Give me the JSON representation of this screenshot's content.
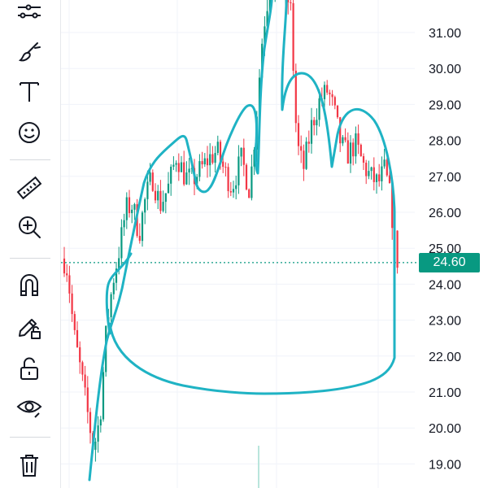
{
  "toolbar": {
    "items": [
      {
        "name": "indicator-lines-icon"
      },
      {
        "name": "brush-icon"
      },
      {
        "name": "text-tool-icon"
      },
      {
        "name": "emoji-icon"
      },
      {
        "name": "ruler-icon"
      },
      {
        "name": "zoom-in-icon"
      },
      {
        "name": "magnet-icon"
      },
      {
        "name": "lock-drawing-icon"
      },
      {
        "name": "unlock-icon"
      },
      {
        "name": "eye-icon"
      },
      {
        "name": "trash-icon"
      }
    ]
  },
  "price_axis": {
    "ticks": [
      "31.00",
      "30.00",
      "29.00",
      "28.00",
      "27.00",
      "26.00",
      "25.00",
      "24.00",
      "23.00",
      "22.00",
      "21.00",
      "20.00",
      "19.00"
    ],
    "tick_values": [
      31,
      30,
      29,
      28,
      27,
      26,
      25,
      24,
      23,
      22,
      21,
      20,
      19
    ]
  },
  "current_price": {
    "label": "24.60",
    "value": 24.6
  },
  "colors": {
    "up": "#089981",
    "down": "#f23645",
    "drawing": "#1fb3c4",
    "grid": "#f0f3fa",
    "price_line": "#089981"
  },
  "chart_data": {
    "type": "candlestick",
    "ylim": [
      19,
      32
    ],
    "y_unit": "price",
    "price_range_shown": [
      19.0,
      32.0
    ],
    "last_price": 24.6,
    "grid": true
  }
}
